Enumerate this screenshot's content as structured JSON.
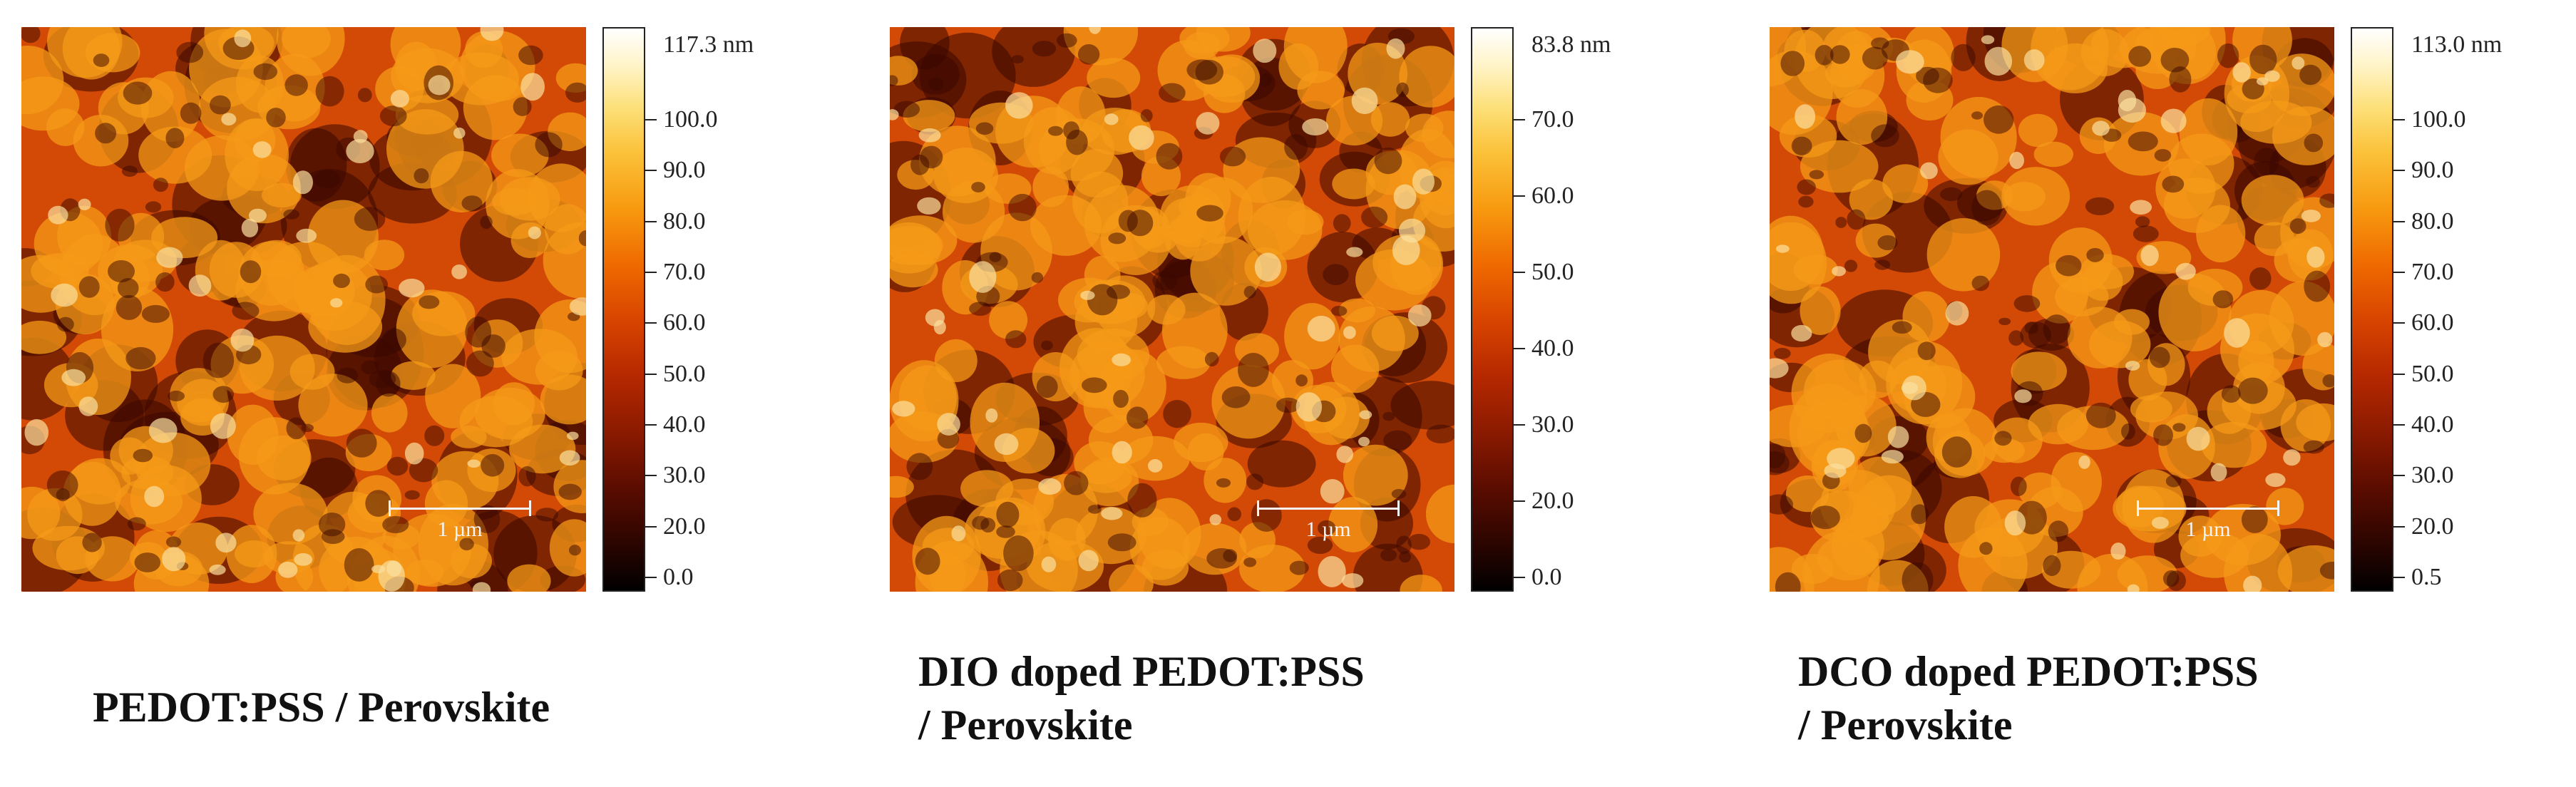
{
  "panels": [
    {
      "caption_line1": "PEDOT:PSS / Perovskite",
      "caption_line2": "",
      "scale_bar": "1 µm",
      "colorbar_max": "117.3 nm",
      "colorbar_ticks": [
        "100.0",
        "90.0",
        "80.0",
        "70.0",
        "60.0",
        "50.0",
        "40.0",
        "30.0",
        "20.0",
        "0.0"
      ]
    },
    {
      "caption_line1": "DIO doped PEDOT:PSS",
      "caption_line2": "/ Perovskite",
      "scale_bar": "1 µm",
      "colorbar_max": "83.8 nm",
      "colorbar_ticks": [
        "70.0",
        "60.0",
        "50.0",
        "40.0",
        "30.0",
        "20.0",
        "0.0"
      ]
    },
    {
      "caption_line1": "DCO doped PEDOT:PSS",
      "caption_line2": "/ Perovskite",
      "scale_bar": "1 µm",
      "colorbar_max": "113.0 nm",
      "colorbar_ticks": [
        "100.0",
        "90.0",
        "80.0",
        "70.0",
        "60.0",
        "50.0",
        "40.0",
        "30.0",
        "20.0",
        "0.5"
      ]
    }
  ],
  "colors": {
    "afm_dark": "#3a0800",
    "afm_mid": "#d24a06",
    "afm_bright": "#f59a18",
    "afm_highlight": "#fbe0a0"
  }
}
